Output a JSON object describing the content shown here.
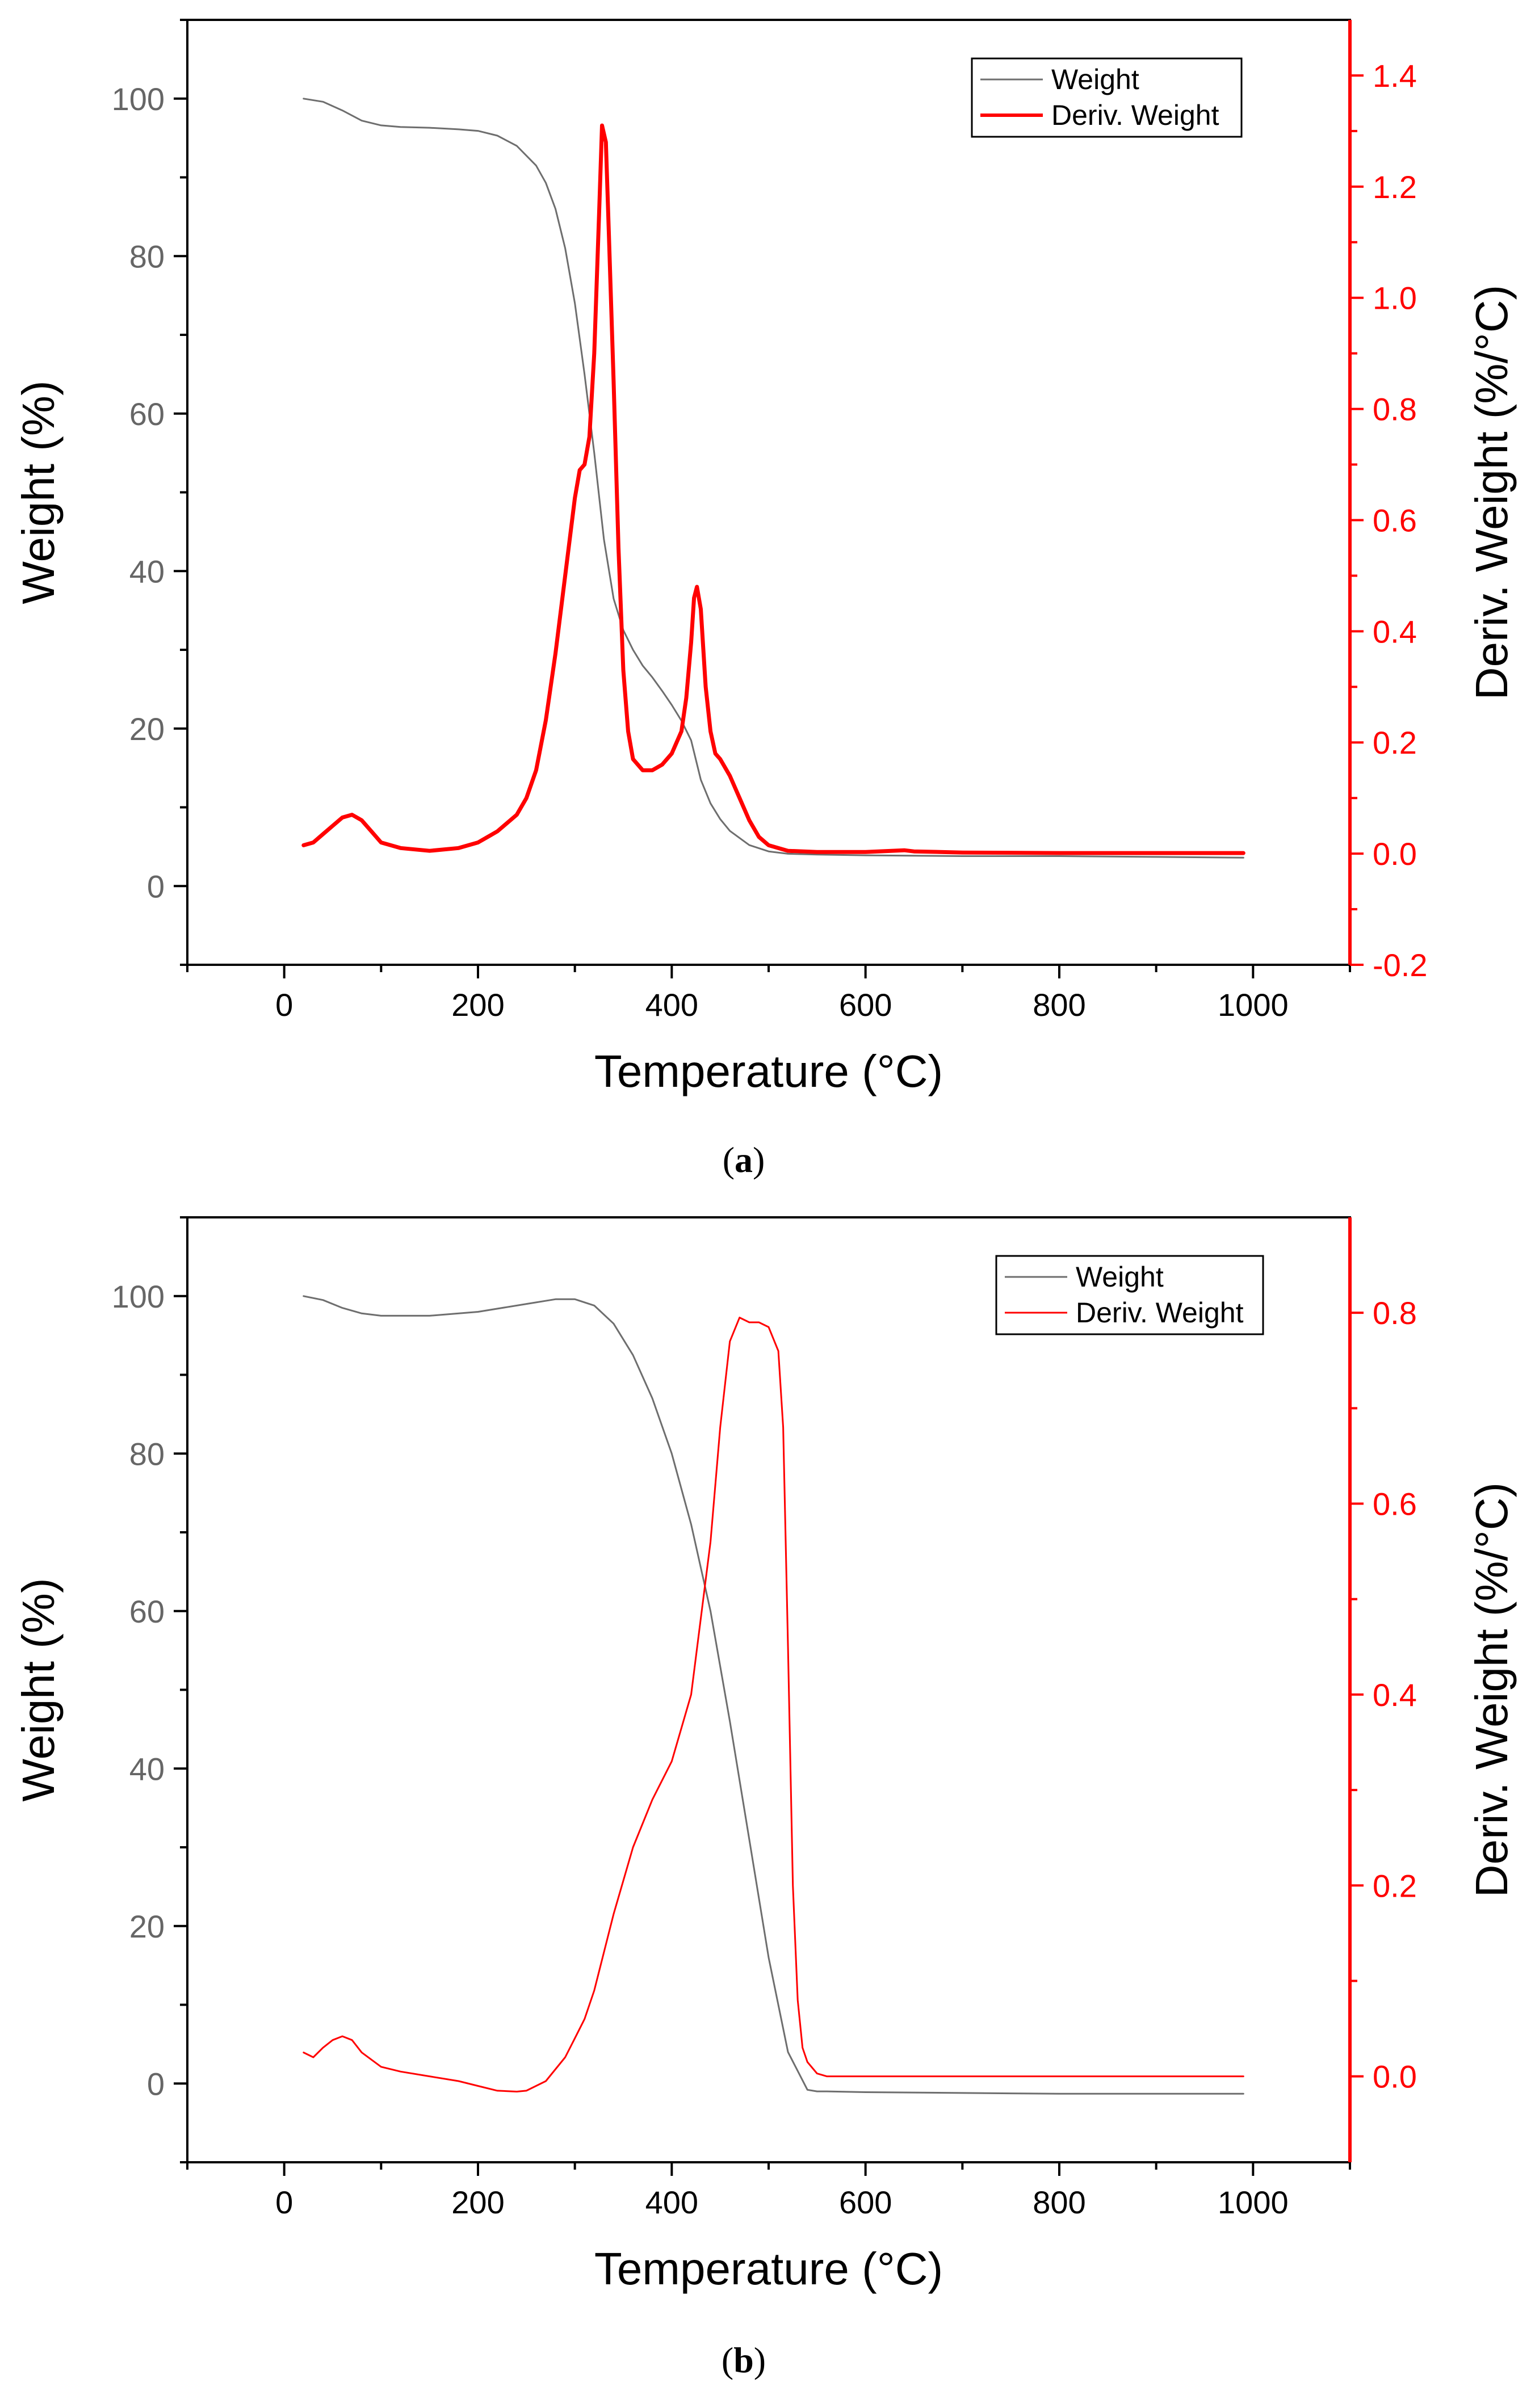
{
  "colors": {
    "weight": "#6e6e6e",
    "deriv": "#ff0000",
    "axis": "#000000",
    "left_axis_tick_text": "#666666"
  },
  "chart_data": [
    {
      "type": "line",
      "caption_label": "a",
      "xlabel": "Temperature (°C)",
      "ylabel": "Weight (%)",
      "y2label": "Deriv. Weight (%/°C)",
      "xlim": [
        -100,
        1100
      ],
      "ylim": [
        -10,
        110
      ],
      "y2lim": [
        -0.2,
        1.5
      ],
      "xticks": [
        0,
        200,
        400,
        600,
        800,
        1000
      ],
      "xtick_labels": [
        "0",
        "200",
        "400",
        "600",
        "800",
        "1000"
      ],
      "yticks": [
        0,
        20,
        40,
        60,
        80,
        100
      ],
      "ytick_labels": [
        "0",
        "20",
        "40",
        "60",
        "80",
        "100"
      ],
      "y2ticks": [
        -0.2,
        0.0,
        0.2,
        0.4,
        0.6,
        0.8,
        1.0,
        1.2,
        1.4
      ],
      "y2tick_labels": [
        "-0.2",
        "0.0",
        "0.2",
        "0.4",
        "0.6",
        "0.8",
        "1.0",
        "1.2",
        "1.4"
      ],
      "legend": {
        "position": "top-right",
        "entries": [
          "Weight",
          "Deriv. Weight"
        ]
      },
      "series": [
        {
          "name": "Weight",
          "axis": "left",
          "x": [
            20,
            40,
            60,
            80,
            100,
            120,
            150,
            180,
            200,
            220,
            240,
            260,
            270,
            280,
            290,
            300,
            310,
            320,
            330,
            340,
            350,
            360,
            370,
            380,
            390,
            400,
            410,
            420,
            430,
            440,
            450,
            460,
            480,
            500,
            520,
            550,
            600,
            700,
            800,
            900,
            990
          ],
          "y": [
            100,
            99.6,
            98.5,
            97.2,
            96.6,
            96.4,
            96.3,
            96.1,
            95.9,
            95.3,
            94.0,
            91.5,
            89.3,
            86.0,
            81.0,
            74.0,
            65.0,
            55.0,
            44.0,
            36.5,
            32.5,
            30.0,
            28.0,
            26.5,
            24.8,
            23.0,
            21.0,
            18.5,
            13.5,
            10.5,
            8.5,
            7.0,
            5.2,
            4.4,
            4.1,
            4.0,
            3.9,
            3.8,
            3.8,
            3.7,
            3.6
          ]
        },
        {
          "name": "Deriv. Weight",
          "axis": "right",
          "x": [
            20,
            30,
            40,
            50,
            60,
            70,
            80,
            90,
            100,
            120,
            150,
            180,
            200,
            210,
            220,
            240,
            250,
            260,
            270,
            280,
            290,
            300,
            305,
            310,
            315,
            320,
            325,
            328,
            332,
            335,
            340,
            345,
            350,
            355,
            360,
            370,
            380,
            390,
            400,
            410,
            415,
            420,
            423,
            426,
            430,
            435,
            440,
            445,
            450,
            460,
            470,
            480,
            490,
            500,
            520,
            550,
            600,
            640,
            650,
            700,
            800,
            900,
            990
          ],
          "y": [
            0.015,
            0.02,
            0.035,
            0.05,
            0.065,
            0.07,
            0.06,
            0.04,
            0.02,
            0.01,
            0.005,
            0.01,
            0.02,
            0.03,
            0.04,
            0.07,
            0.1,
            0.15,
            0.24,
            0.36,
            0.5,
            0.64,
            0.69,
            0.7,
            0.75,
            0.9,
            1.15,
            1.31,
            1.28,
            1.12,
            0.85,
            0.55,
            0.33,
            0.22,
            0.17,
            0.15,
            0.15,
            0.16,
            0.18,
            0.22,
            0.28,
            0.38,
            0.46,
            0.48,
            0.44,
            0.3,
            0.22,
            0.18,
            0.17,
            0.14,
            0.1,
            0.06,
            0.03,
            0.015,
            0.005,
            0.003,
            0.003,
            0.006,
            0.004,
            0.002,
            0.001,
            0.001,
            0.001
          ]
        }
      ]
    },
    {
      "type": "line",
      "caption_label": "b",
      "xlabel": "Temperature (°C)",
      "ylabel": "Weight (%)",
      "y2label": "Deriv. Weight (%/°C)",
      "xlim": [
        -100,
        1100
      ],
      "ylim": [
        -10,
        110
      ],
      "y2lim": [
        -0.09,
        0.9
      ],
      "xticks": [
        0,
        200,
        400,
        600,
        800,
        1000
      ],
      "xtick_labels": [
        "0",
        "200",
        "400",
        "600",
        "800",
        "1000"
      ],
      "yticks": [
        0,
        20,
        40,
        60,
        80,
        100
      ],
      "ytick_labels": [
        "0",
        "20",
        "40",
        "60",
        "80",
        "100"
      ],
      "y2ticks": [
        0.0,
        0.2,
        0.4,
        0.6,
        0.8
      ],
      "y2tick_labels": [
        "0.0",
        "0.2",
        "0.4",
        "0.6",
        "0.8"
      ],
      "legend": {
        "position": "top-right",
        "entries": [
          "Weight",
          "Deriv. Weight"
        ]
      },
      "series": [
        {
          "name": "Weight",
          "axis": "left",
          "x": [
            20,
            40,
            60,
            80,
            100,
            150,
            200,
            250,
            280,
            300,
            320,
            340,
            360,
            380,
            400,
            420,
            440,
            460,
            480,
            500,
            520,
            540,
            550,
            560,
            600,
            700,
            800,
            900,
            990
          ],
          "y": [
            100,
            99.5,
            98.5,
            97.8,
            97.5,
            97.5,
            98.0,
            99.0,
            99.6,
            99.6,
            98.8,
            96.5,
            92.5,
            87.0,
            80.0,
            71.0,
            60.0,
            46.0,
            31.0,
            16.0,
            4.0,
            -0.8,
            -1.0,
            -1.0,
            -1.1,
            -1.2,
            -1.3,
            -1.3,
            -1.3
          ]
        },
        {
          "name": "Deriv. Weight",
          "axis": "right",
          "x": [
            20,
            30,
            40,
            50,
            60,
            70,
            80,
            100,
            120,
            150,
            180,
            200,
            220,
            240,
            250,
            270,
            290,
            300,
            310,
            320,
            340,
            360,
            380,
            400,
            420,
            440,
            450,
            460,
            470,
            480,
            490,
            500,
            510,
            515,
            520,
            525,
            530,
            535,
            540,
            550,
            560,
            600,
            700,
            800,
            900,
            990
          ],
          "y": [
            0.025,
            0.02,
            0.03,
            0.038,
            0.042,
            0.038,
            0.025,
            0.01,
            0.005,
            0.0,
            -0.005,
            -0.01,
            -0.015,
            -0.016,
            -0.015,
            -0.005,
            0.02,
            0.04,
            0.06,
            0.09,
            0.17,
            0.24,
            0.29,
            0.33,
            0.4,
            0.56,
            0.68,
            0.77,
            0.795,
            0.79,
            0.79,
            0.785,
            0.76,
            0.68,
            0.45,
            0.2,
            0.08,
            0.03,
            0.015,
            0.003,
            0.0,
            0.0,
            0.0,
            0.0,
            0.0,
            0.0
          ]
        }
      ]
    }
  ]
}
